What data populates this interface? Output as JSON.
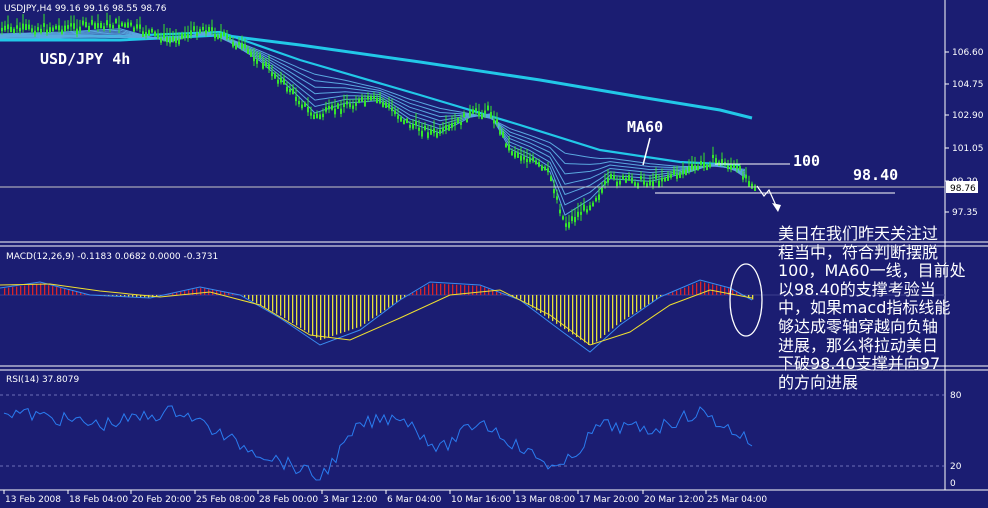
{
  "window": {
    "symbol_header": "USDJPY,H4  99.16 99.16 98.55 98.76",
    "chart_title": "USD/JPY 4h"
  },
  "price_axis": {
    "ticks": [
      "106.60",
      "104.75",
      "102.90",
      "101.05",
      "99.20",
      "97.35"
    ],
    "current_price": "98.76"
  },
  "annotations": {
    "ma60_label": "MA60",
    "level_100": "100",
    "level_9840": "98.40",
    "commentary_lines": [
      "美日在我们昨天关注过",
      "程当中，符合判断摆脱",
      "100，MA60一线，目前处",
      "以98.40的支撑考验当",
      "中，如果macd指标线能",
      "够达成零轴穿越向负轴",
      "进展，那么将拉动美日",
      "下破98.40支撑并向97",
      "的方向进展"
    ]
  },
  "macd": {
    "header": "MACD(12,26,9) -0.1183 0.0682 0.0000 -0.3731",
    "axis_top": "",
    "axis_bottom": ""
  },
  "rsi": {
    "header": "RSI(14) 37.8079",
    "ticks": [
      "80",
      "20",
      "0"
    ]
  },
  "time_axis": {
    "labels": [
      "13 Feb 2008",
      "18 Feb 04:00",
      "20 Feb 20:00",
      "25 Feb 08:00",
      "28 Feb 00:00",
      "3 Mar 12:00",
      "6 Mar 04:00",
      "10 Mar 16:00",
      "13 Mar 08:00",
      "17 Mar 20:00",
      "20 Mar 12:00",
      "25 Mar 04:00"
    ]
  },
  "colors": {
    "background": "#1b1d72",
    "candles": "#35e52b",
    "ma_long": "#22c8e8",
    "ma_ribbon": "#5aa8e0",
    "macd_hist_pos": "#d8242a",
    "macd_hist_neg": "#e8e23a",
    "macd_signal": "#f0e030",
    "rsi_line": "#2a7cf0",
    "text": "#ffffff"
  }
}
